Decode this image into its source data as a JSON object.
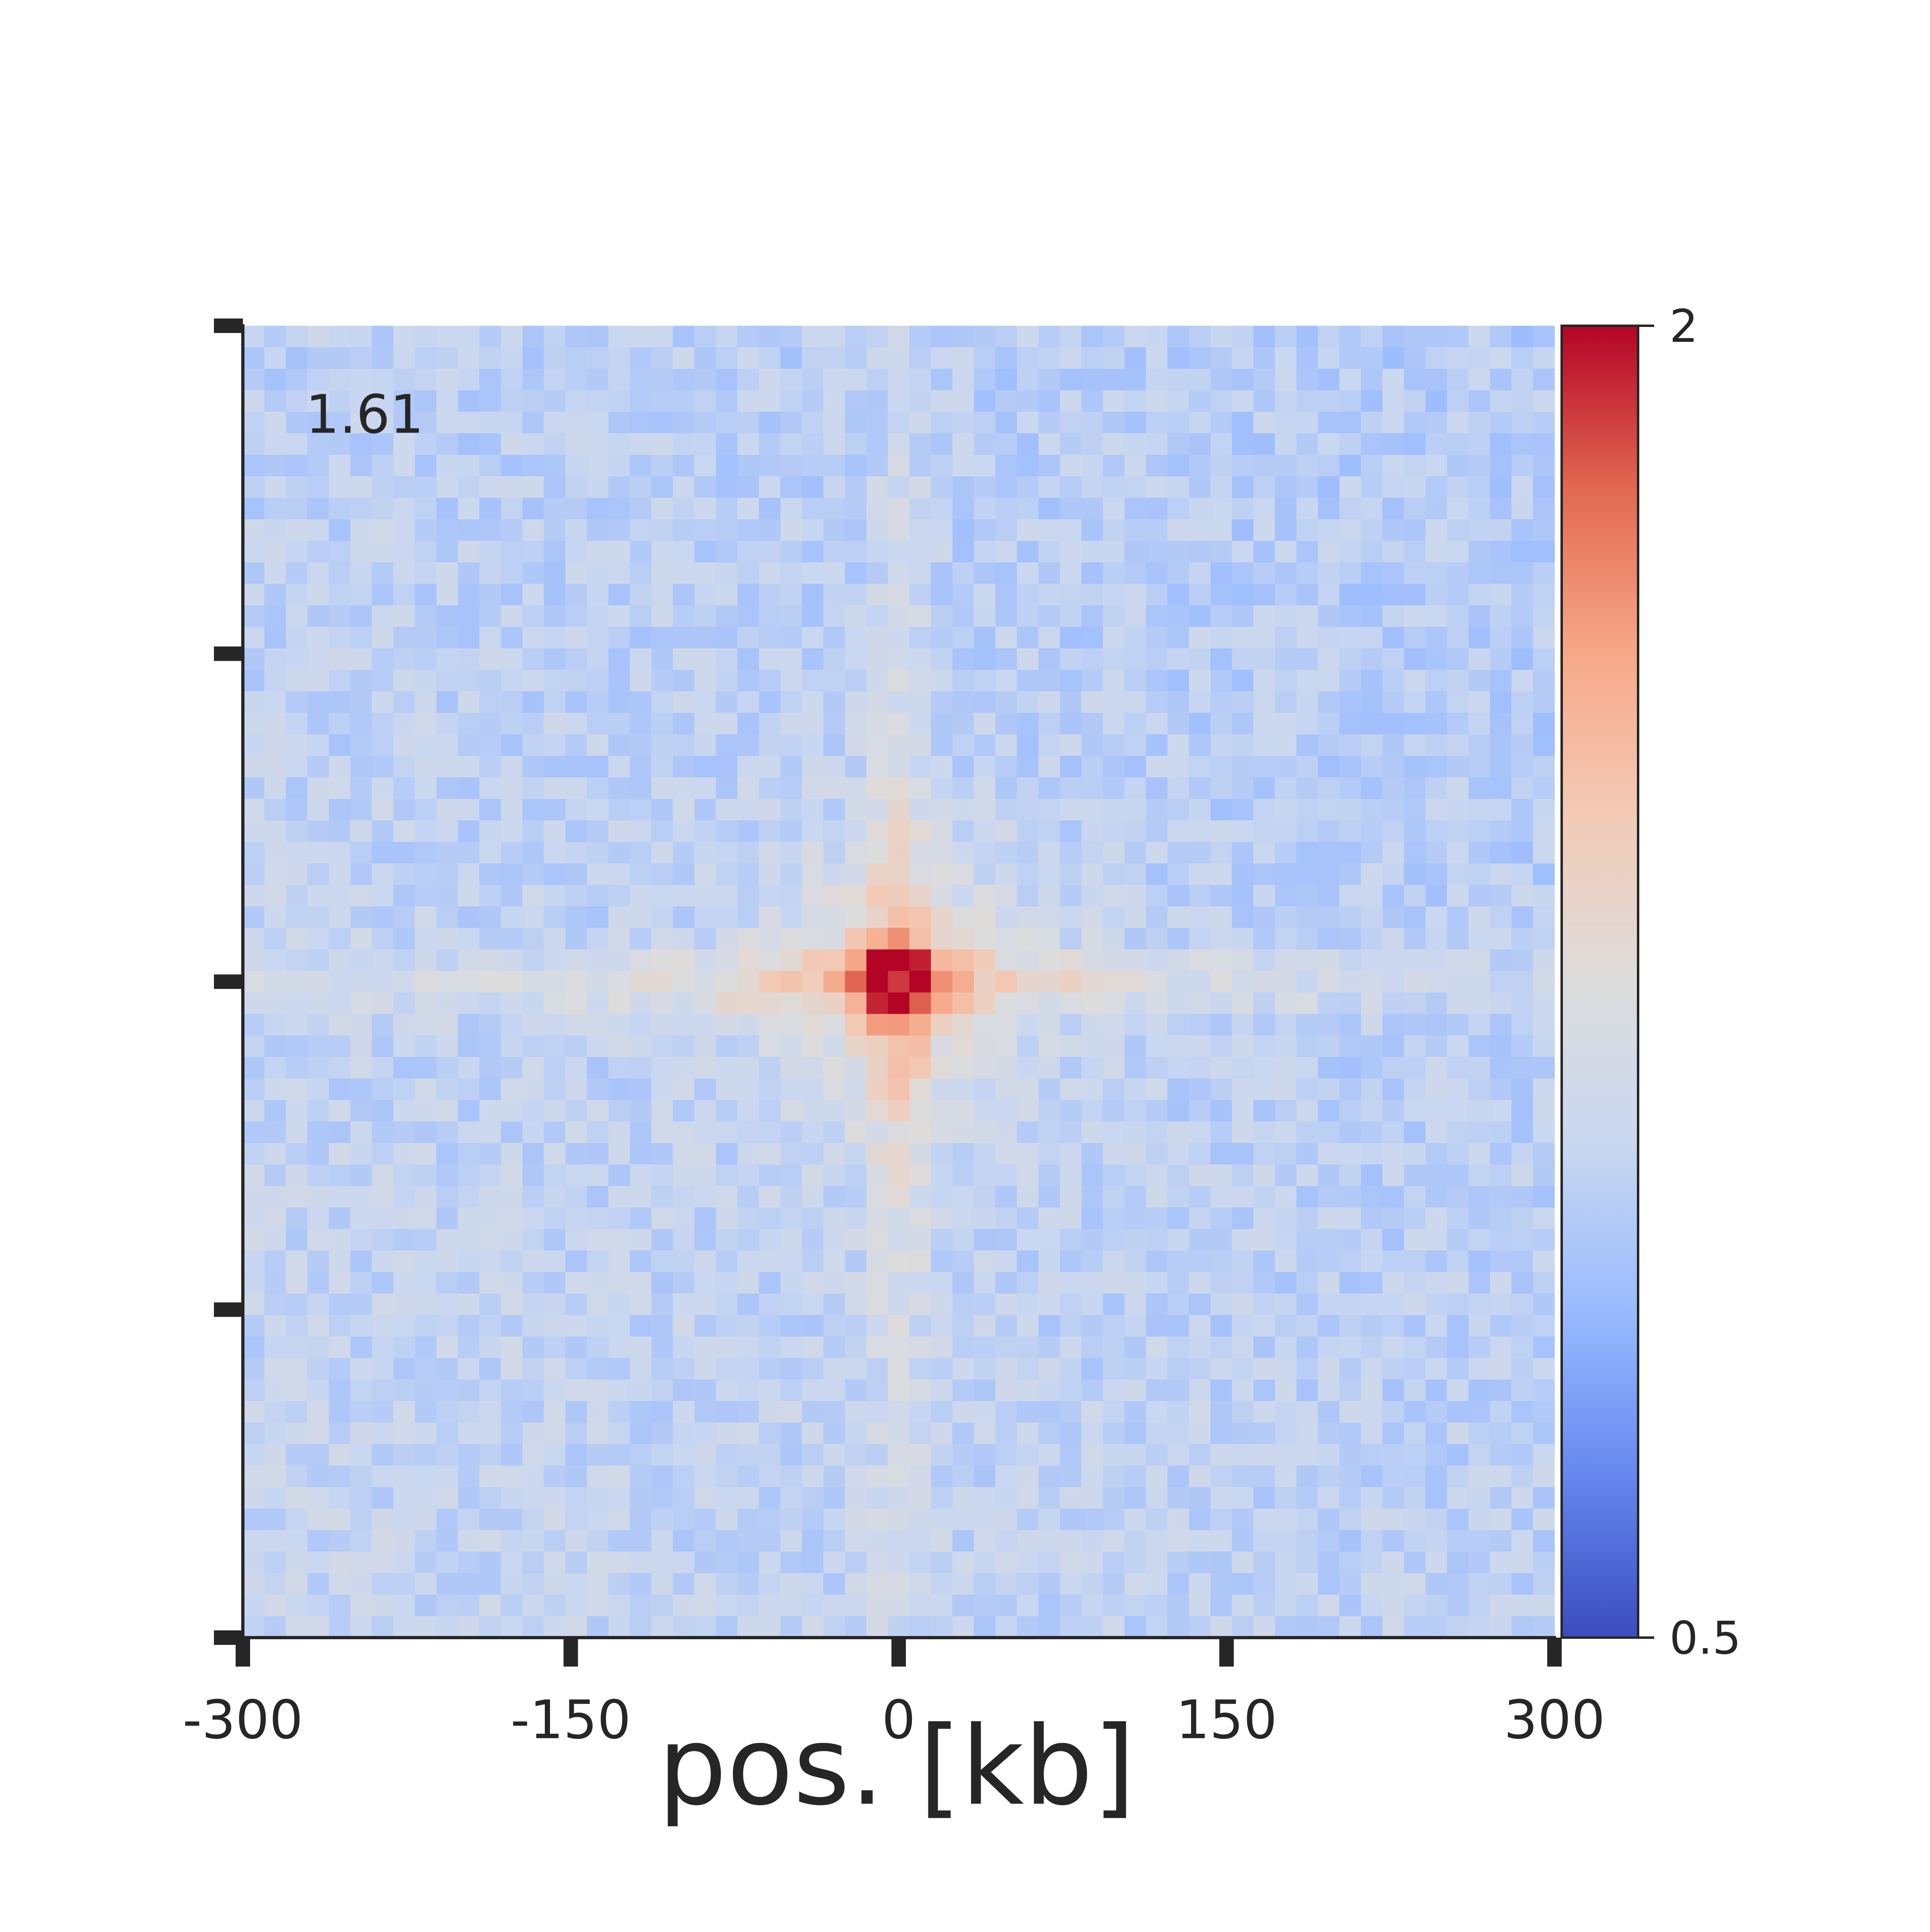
{
  "chart_data": {
    "type": "heatmap",
    "title": "",
    "annotation": "1.61",
    "xlabel": "pos. [kb]",
    "ylabel": "",
    "xlim": [
      -300,
      300
    ],
    "ylim": [
      -300,
      300
    ],
    "x_ticks": [
      -300,
      -150,
      0,
      150,
      300
    ],
    "x_tick_labels": [
      "-300",
      "-150",
      "0",
      "150",
      "300"
    ],
    "y_ticks": [
      -300,
      -150,
      0,
      150,
      300
    ],
    "y_tick_labels": [],
    "grid": false,
    "colormap": "coolwarm",
    "colorbar": {
      "min": 0.5,
      "max": 2,
      "ticks": [
        0.5,
        2
      ],
      "tick_labels": [
        "0.5",
        "2"
      ],
      "colors": [
        "#3b4cc0",
        "#6788ee",
        "#9abbff",
        "#c9d7f0",
        "#dddcdc",
        "#f2cbb7",
        "#f7a889",
        "#e26952",
        "#b40426"
      ]
    },
    "bins": 61,
    "center_value": 2.0,
    "background_value": 1.02,
    "cross_arm_value": 1.3
  }
}
